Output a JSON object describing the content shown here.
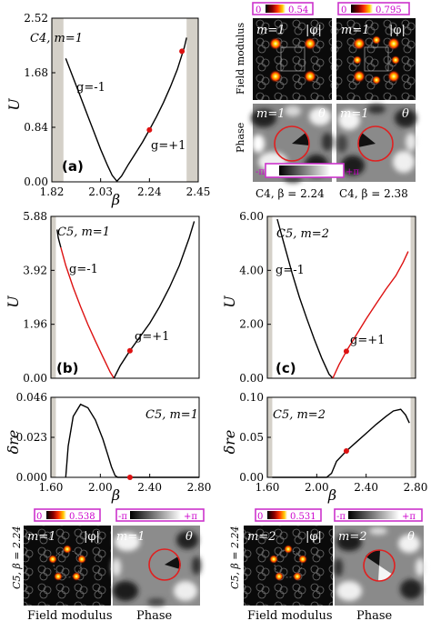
{
  "figure": {
    "panel_a": {
      "tag": "(a)",
      "header": "C4, m=1",
      "branch_left": "g=-1",
      "branch_right": "g=+1"
    },
    "panel_b": {
      "tag": "(b)",
      "header": "C5, m=1",
      "branch_left": "g=-1",
      "branch_right": "g=+1",
      "delta_header": "C5, m=1"
    },
    "panel_c": {
      "tag": "(c)",
      "header": "C5, m=2",
      "branch_left": "g=-1",
      "branch_right": "g=+1",
      "delta_header": "C5, m=2"
    },
    "inset_c4": {
      "row_field": "Field modulus",
      "row_phase": "Phase",
      "m_label": "m=1",
      "phi_label": "|φ|",
      "theta_label": "θ",
      "bar1_min": "0",
      "bar1_max": "0.54",
      "bar2_min": "0",
      "bar2_max": "0.795",
      "phase_min": "-π",
      "phase_max": "+π",
      "cap1": "C4, β = 2.24",
      "cap2": "C4, β = 2.38"
    },
    "inset_c5_left": {
      "side": "C5, β = 2.24",
      "m_label": "m=1",
      "phi_label": "|φ|",
      "theta_label": "θ",
      "bar_min": "0",
      "bar_max": "0.538",
      "phase_min": "-π",
      "phase_max": "+π",
      "cap_field": "Field modulus",
      "cap_phase": "Phase"
    },
    "inset_c5_right": {
      "side": "C5, β = 2.24",
      "m_label": "m=2",
      "phi_label": "|φ|",
      "theta_label": "θ",
      "bar_min": "0",
      "bar_max": "0.531",
      "phase_min": "-π",
      "phase_max": "+π",
      "cap_field": "Field modulus",
      "cap_phase": "Phase"
    }
  },
  "chart_data": [
    {
      "id": "a",
      "type": "line",
      "xlabel": "β",
      "ylabel": "U",
      "xlim": [
        1.82,
        2.45
      ],
      "ylim": [
        0,
        2.52
      ],
      "xticks": [
        "1.82",
        "2.03",
        "2.24",
        "2.45"
      ],
      "yticks": [
        "0.00",
        "0.84",
        "1.68",
        "2.52"
      ],
      "gray_bands": [
        [
          1.82,
          1.87
        ],
        [
          2.4,
          2.45
        ]
      ],
      "series": [
        {
          "color": "#000000",
          "x": [
            1.88,
            1.91,
            1.94,
            1.97,
            2.0,
            2.03,
            2.06,
            2.08,
            2.1,
            2.12,
            2.15,
            2.18,
            2.21,
            2.24,
            2.27,
            2.3,
            2.33,
            2.36,
            2.39,
            2.4
          ],
          "y": [
            1.9,
            1.62,
            1.34,
            1.06,
            0.78,
            0.5,
            0.25,
            0.1,
            0.01,
            0.09,
            0.27,
            0.44,
            0.61,
            0.8,
            1.0,
            1.22,
            1.46,
            1.73,
            2.07,
            2.22
          ]
        }
      ],
      "markers": [
        {
          "x": 2.24,
          "y": 0.8,
          "color": "#dd1111"
        },
        {
          "x": 2.38,
          "y": 2.01,
          "color": "#dd1111"
        }
      ]
    },
    {
      "id": "b",
      "type": "line",
      "xlabel": "",
      "ylabel": "U",
      "xlim": [
        1.6,
        2.8
      ],
      "ylim": [
        0,
        5.88
      ],
      "xticks": [],
      "yticks": [
        "0.00",
        "1.96",
        "3.92",
        "5.88"
      ],
      "gray_bands": [
        [
          1.6,
          1.64
        ]
      ],
      "series": [
        {
          "color": "#000000",
          "x": [
            1.65,
            1.66,
            1.68
          ],
          "y": [
            5.4,
            5.1,
            4.75
          ]
        },
        {
          "color": "#dd1111",
          "x": [
            1.68,
            1.72,
            1.78,
            1.84,
            1.9,
            1.96,
            2.02,
            2.08,
            2.11
          ],
          "y": [
            4.75,
            4.1,
            3.3,
            2.6,
            1.95,
            1.35,
            0.78,
            0.22,
            0.0
          ]
        },
        {
          "color": "#000000",
          "x": [
            2.11,
            2.16,
            2.24,
            2.32,
            2.4,
            2.48,
            2.56,
            2.64,
            2.72,
            2.76
          ],
          "y": [
            0.0,
            0.45,
            1.0,
            1.5,
            2.0,
            2.6,
            3.3,
            4.1,
            5.1,
            5.7
          ]
        }
      ],
      "markers": [
        {
          "x": 2.24,
          "y": 1.0,
          "color": "#dd1111"
        }
      ]
    },
    {
      "id": "b_delta",
      "type": "line",
      "xlabel": "β",
      "ylabel": "δre",
      "xlim": [
        1.6,
        2.8
      ],
      "ylim": [
        0,
        0.046
      ],
      "xticks": [
        "1.60",
        "2.00",
        "2.40",
        "2.80"
      ],
      "yticks": [
        "0.000",
        "0.023",
        "0.046"
      ],
      "gray_bands": [
        [
          1.6,
          1.64
        ]
      ],
      "series": [
        {
          "color": "#000000",
          "x": [
            1.72,
            1.74,
            1.78,
            1.84,
            1.9,
            1.96,
            2.02,
            2.06,
            2.09,
            2.12,
            2.14,
            2.16,
            2.8
          ],
          "y": [
            0.0,
            0.018,
            0.035,
            0.042,
            0.04,
            0.033,
            0.022,
            0.013,
            0.006,
            0.001,
            0.0,
            0.0,
            0.0
          ]
        }
      ],
      "markers": [
        {
          "x": 2.24,
          "y": 0.0,
          "color": "#dd1111"
        }
      ]
    },
    {
      "id": "c",
      "type": "line",
      "xlabel": "",
      "ylabel": "U",
      "xlim": [
        1.6,
        2.8
      ],
      "ylim": [
        0,
        6.0
      ],
      "xticks": [],
      "yticks": [
        "0.00",
        "2.00",
        "4.00",
        "6.00"
      ],
      "gray_bands": [
        [
          1.6,
          1.64
        ],
        [
          2.76,
          2.8
        ]
      ],
      "series": [
        {
          "color": "#000000",
          "x": [
            1.68,
            1.74,
            1.8,
            1.86,
            1.92,
            1.98,
            2.04,
            2.1,
            2.13
          ],
          "y": [
            5.9,
            4.9,
            3.9,
            3.0,
            2.2,
            1.45,
            0.75,
            0.15,
            0.0
          ]
        },
        {
          "color": "#dd1111",
          "x": [
            2.13,
            2.18,
            2.24,
            2.32,
            2.4,
            2.48,
            2.56,
            2.64,
            2.7,
            2.74
          ],
          "y": [
            0.0,
            0.5,
            1.0,
            1.6,
            2.2,
            2.75,
            3.3,
            3.8,
            4.3,
            4.7
          ]
        }
      ],
      "markers": [
        {
          "x": 2.24,
          "y": 1.0,
          "color": "#dd1111"
        }
      ]
    },
    {
      "id": "c_delta",
      "type": "line",
      "xlabel": "β",
      "ylabel": "δre",
      "xlim": [
        1.6,
        2.8
      ],
      "ylim": [
        0,
        0.1
      ],
      "xticks": [
        "1.60",
        "2.00",
        "2.40",
        "2.80"
      ],
      "yticks": [
        "0.00",
        "0.05",
        "0.10"
      ],
      "gray_bands": [
        [
          1.6,
          1.64
        ],
        [
          2.76,
          2.8
        ]
      ],
      "series": [
        {
          "color": "#000000",
          "x": [
            1.64,
            2.08,
            2.12,
            2.16,
            2.24,
            2.32,
            2.4,
            2.48,
            2.56,
            2.62,
            2.68,
            2.72,
            2.75
          ],
          "y": [
            0.0,
            0.0,
            0.005,
            0.02,
            0.033,
            0.044,
            0.055,
            0.066,
            0.076,
            0.083,
            0.085,
            0.078,
            0.068
          ]
        }
      ],
      "markers": [
        {
          "x": 2.24,
          "y": 0.033,
          "color": "#dd1111"
        }
      ]
    }
  ]
}
